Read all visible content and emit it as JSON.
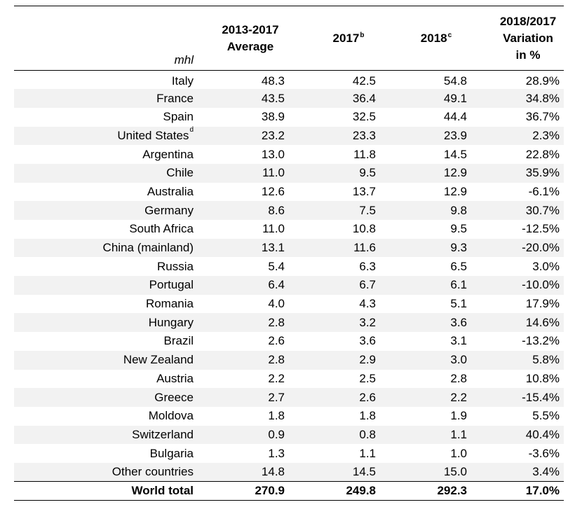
{
  "table": {
    "unit": "mhl",
    "headers": {
      "avg_line1": "2013-2017",
      "avg_line2": "Average",
      "y2017": "2017",
      "y2017_sup": "b",
      "y2018": "2018",
      "y2018_sup": "c",
      "var_line1": "2018/2017",
      "var_line2": "Variation",
      "var_line3": "in %"
    },
    "rows": [
      {
        "country": "Italy",
        "sup": "",
        "avg": "48.3",
        "y2017": "42.5",
        "y2018": "54.8",
        "var": "28.9%"
      },
      {
        "country": "France",
        "sup": "",
        "avg": "43.5",
        "y2017": "36.4",
        "y2018": "49.1",
        "var": "34.8%"
      },
      {
        "country": "Spain",
        "sup": "",
        "avg": "38.9",
        "y2017": "32.5",
        "y2018": "44.4",
        "var": "36.7%"
      },
      {
        "country": "United States",
        "sup": "d",
        "avg": "23.2",
        "y2017": "23.3",
        "y2018": "23.9",
        "var": "2.3%"
      },
      {
        "country": "Argentina",
        "sup": "",
        "avg": "13.0",
        "y2017": "11.8",
        "y2018": "14.5",
        "var": "22.8%"
      },
      {
        "country": "Chile",
        "sup": "",
        "avg": "11.0",
        "y2017": "9.5",
        "y2018": "12.9",
        "var": "35.9%"
      },
      {
        "country": "Australia",
        "sup": "",
        "avg": "12.6",
        "y2017": "13.7",
        "y2018": "12.9",
        "var": "-6.1%"
      },
      {
        "country": "Germany",
        "sup": "",
        "avg": "8.6",
        "y2017": "7.5",
        "y2018": "9.8",
        "var": "30.7%"
      },
      {
        "country": "South Africa",
        "sup": "",
        "avg": "11.0",
        "y2017": "10.8",
        "y2018": "9.5",
        "var": "-12.5%"
      },
      {
        "country": "China (mainland)",
        "sup": "",
        "avg": "13.1",
        "y2017": "11.6",
        "y2018": "9.3",
        "var": "-20.0%"
      },
      {
        "country": "Russia",
        "sup": "",
        "avg": "5.4",
        "y2017": "6.3",
        "y2018": "6.5",
        "var": "3.0%"
      },
      {
        "country": "Portugal",
        "sup": "",
        "avg": "6.4",
        "y2017": "6.7",
        "y2018": "6.1",
        "var": "-10.0%"
      },
      {
        "country": "Romania",
        "sup": "",
        "avg": "4.0",
        "y2017": "4.3",
        "y2018": "5.1",
        "var": "17.9%"
      },
      {
        "country": "Hungary",
        "sup": "",
        "avg": "2.8",
        "y2017": "3.2",
        "y2018": "3.6",
        "var": "14.6%"
      },
      {
        "country": "Brazil",
        "sup": "",
        "avg": "2.6",
        "y2017": "3.6",
        "y2018": "3.1",
        "var": "-13.2%"
      },
      {
        "country": "New Zealand",
        "sup": "",
        "avg": "2.8",
        "y2017": "2.9",
        "y2018": "3.0",
        "var": "5.8%"
      },
      {
        "country": "Austria",
        "sup": "",
        "avg": "2.2",
        "y2017": "2.5",
        "y2018": "2.8",
        "var": "10.8%"
      },
      {
        "country": "Greece",
        "sup": "",
        "avg": "2.7",
        "y2017": "2.6",
        "y2018": "2.2",
        "var": "-15.4%"
      },
      {
        "country": "Moldova",
        "sup": "",
        "avg": "1.8",
        "y2017": "1.8",
        "y2018": "1.9",
        "var": "5.5%"
      },
      {
        "country": "Switzerland",
        "sup": "",
        "avg": "0.9",
        "y2017": "0.8",
        "y2018": "1.1",
        "var": "40.4%"
      },
      {
        "country": "Bulgaria",
        "sup": "",
        "avg": "1.3",
        "y2017": "1.1",
        "y2018": "1.0",
        "var": "-3.6%"
      },
      {
        "country": "Other countries",
        "sup": "",
        "avg": "14.8",
        "y2017": "14.5",
        "y2018": "15.0",
        "var": "3.4%"
      }
    ],
    "total": {
      "country": "World total",
      "avg": "270.9",
      "y2017": "249.8",
      "y2018": "292.3",
      "var": "17.0%"
    }
  }
}
